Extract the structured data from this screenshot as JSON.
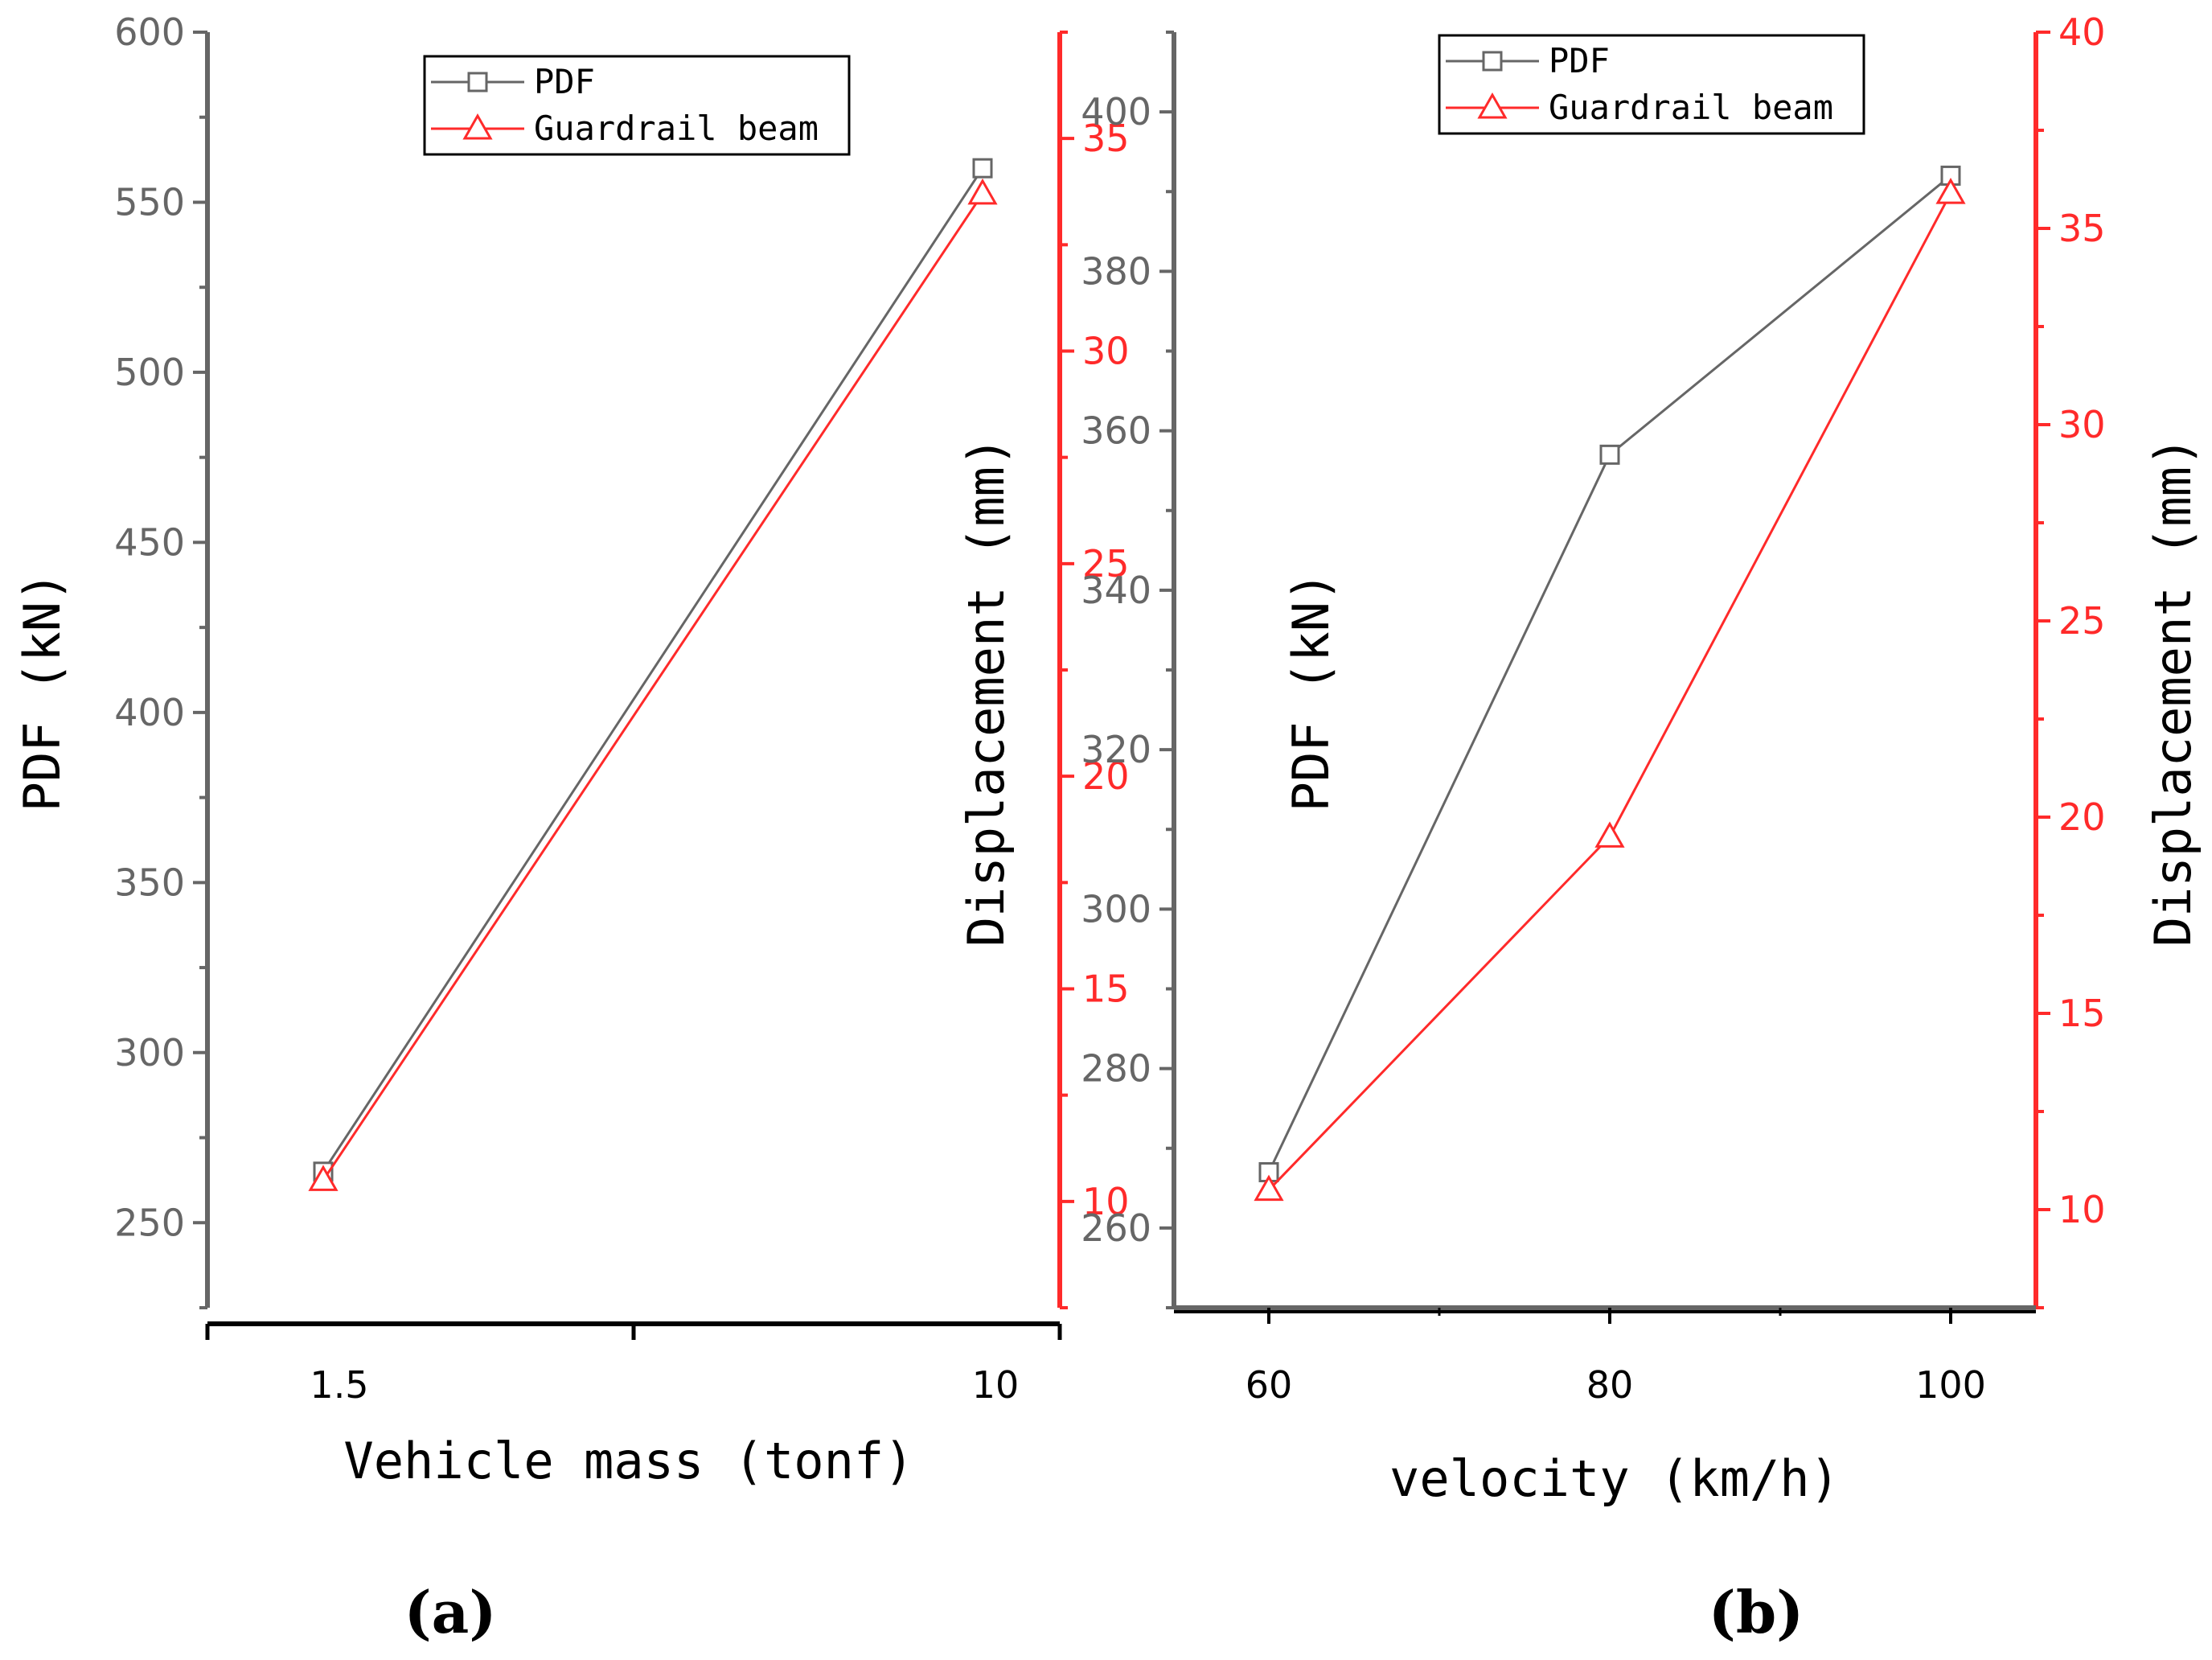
{
  "colors": {
    "pdf": "#666666",
    "guardrail": "#ff2a2a",
    "text": "#000000"
  },
  "chart_data": [
    {
      "type": "line",
      "panel_label": "(a)",
      "xlabel": "Vehicle mass (tonf)",
      "ylabel": "PDF (kN)",
      "y2label": "Displacement (mm)",
      "categories": [
        "1.5",
        "10"
      ],
      "ylim": [
        225,
        600
      ],
      "yticks": [
        "250",
        "300",
        "350",
        "400",
        "450",
        "500",
        "550",
        "600"
      ],
      "y2lim": [
        7.5,
        37.5
      ],
      "y2ticks": [
        "10",
        "15",
        "20",
        "25",
        "30",
        "35"
      ],
      "legend": [
        "PDF",
        "Guardrail beam"
      ],
      "legend_position": "top-center",
      "series": [
        {
          "name": "PDF",
          "axis": "left",
          "marker": "square",
          "values": [
            265,
            560
          ]
        },
        {
          "name": "Guardrail beam",
          "axis": "right",
          "marker": "triangle",
          "values": [
            10.5,
            33.7
          ]
        }
      ]
    },
    {
      "type": "line",
      "panel_label": "(b)",
      "xlabel": "velocity (km/h)",
      "ylabel": "PDF (kN)",
      "y2label": "Displacement (mm)",
      "categories": [
        "60",
        "80",
        "100"
      ],
      "ylim": [
        250,
        410
      ],
      "yticks": [
        "260",
        "280",
        "300",
        "320",
        "340",
        "360",
        "380",
        "400"
      ],
      "y2lim": [
        7.5,
        40
      ],
      "y2ticks": [
        "10",
        "15",
        "20",
        "25",
        "30",
        "35",
        "40"
      ],
      "legend": [
        "PDF",
        "Guardrail beam"
      ],
      "legend_position": "top-center",
      "series": [
        {
          "name": "PDF",
          "axis": "left",
          "marker": "square",
          "values": [
            267,
            357,
            392
          ]
        },
        {
          "name": "Guardrail beam",
          "axis": "right",
          "marker": "triangle",
          "values": [
            10.5,
            19.5,
            35.9
          ]
        }
      ]
    }
  ]
}
